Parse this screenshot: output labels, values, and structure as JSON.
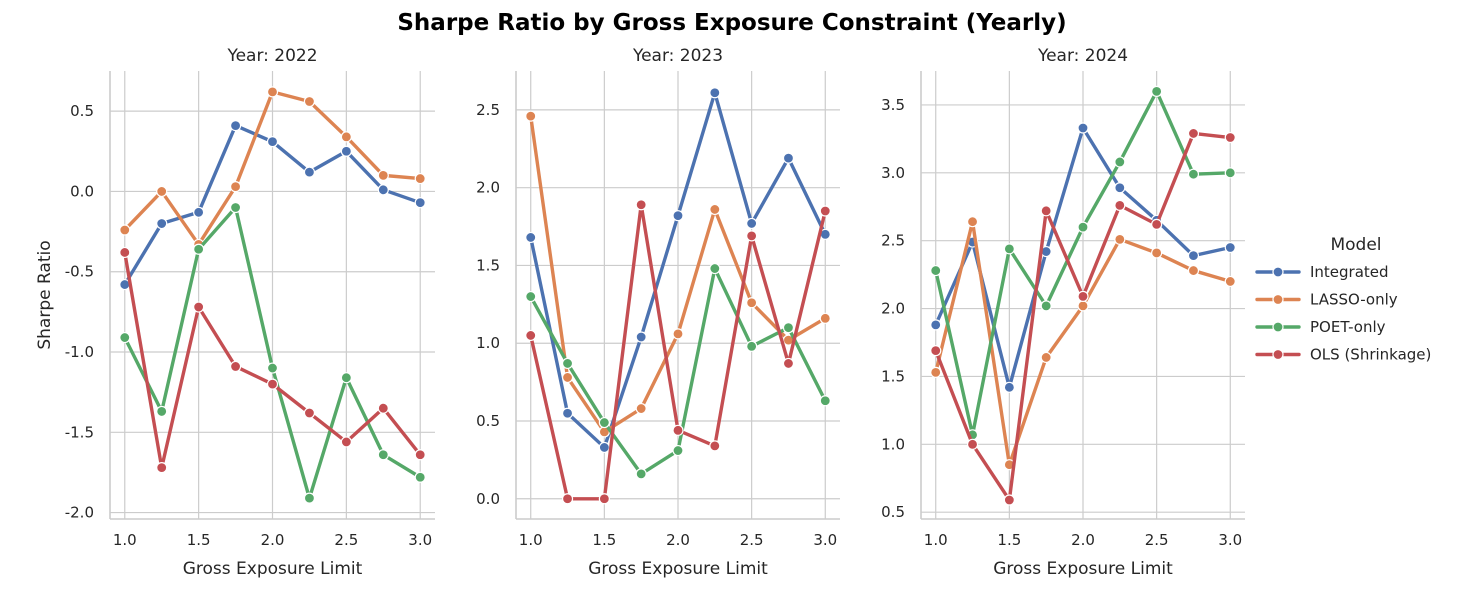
{
  "chart_data": {
    "type": "line",
    "title": "Sharpe Ratio by Gross Exposure Constraint (Yearly)",
    "xlabel": "Gross Exposure Limit",
    "ylabel": "Sharpe Ratio",
    "legend": {
      "title": "Model",
      "placement": "right",
      "entries": [
        "Integrated",
        "LASSO-only",
        "POET-only",
        "OLS (Shrinkage)"
      ]
    },
    "colors": {
      "Integrated": "#4c72b0",
      "LASSO-only": "#dd8452",
      "POET-only": "#55a868",
      "OLS (Shrinkage)": "#c44e52"
    },
    "grid": true,
    "x": [
      1.0,
      1.25,
      1.5,
      1.75,
      2.0,
      2.25,
      2.5,
      2.75,
      3.0
    ],
    "xlim": [
      0.9,
      3.1
    ],
    "xticks": [
      "1.0",
      "1.5",
      "2.0",
      "2.5",
      "3.0"
    ],
    "xtick_values": [
      1.0,
      1.5,
      2.0,
      2.5,
      3.0
    ],
    "panels": [
      {
        "title": "Year: 2022",
        "ylim": [
          -2.04,
          0.75
        ],
        "yticks": [
          "-2.0",
          "-1.5",
          "-1.0",
          "-0.5",
          "0.0",
          "0.5"
        ],
        "ytick_values": [
          -2.0,
          -1.5,
          -1.0,
          -0.5,
          0.0,
          0.5
        ],
        "series": [
          {
            "name": "Integrated",
            "values": [
              -0.58,
              -0.2,
              -0.13,
              0.41,
              0.31,
              0.12,
              0.25,
              0.01,
              -0.07
            ]
          },
          {
            "name": "LASSO-only",
            "values": [
              -0.24,
              0.0,
              -0.33,
              0.03,
              0.62,
              0.56,
              0.34,
              0.1,
              0.08
            ]
          },
          {
            "name": "POET-only",
            "values": [
              -0.91,
              -1.37,
              -0.36,
              -0.1,
              -1.1,
              -1.91,
              -1.16,
              -1.64,
              -1.78
            ]
          },
          {
            "name": "OLS (Shrinkage)",
            "values": [
              -0.38,
              -1.72,
              -0.72,
              -1.09,
              -1.2,
              -1.38,
              -1.56,
              -1.35,
              -1.64
            ]
          }
        ]
      },
      {
        "title": "Year: 2023",
        "ylim": [
          -0.13,
          2.75
        ],
        "yticks": [
          "0.0",
          "0.5",
          "1.0",
          "1.5",
          "2.0",
          "2.5"
        ],
        "ytick_values": [
          0.0,
          0.5,
          1.0,
          1.5,
          2.0,
          2.5
        ],
        "series": [
          {
            "name": "Integrated",
            "values": [
              1.68,
              0.55,
              0.33,
              1.04,
              1.82,
              2.61,
              1.77,
              2.19,
              1.7
            ]
          },
          {
            "name": "LASSO-only",
            "values": [
              2.46,
              0.78,
              0.43,
              0.58,
              1.06,
              1.86,
              1.26,
              1.02,
              1.16
            ]
          },
          {
            "name": "POET-only",
            "values": [
              1.3,
              0.87,
              0.49,
              0.16,
              0.31,
              1.48,
              0.98,
              1.1,
              0.63
            ]
          },
          {
            "name": "OLS (Shrinkage)",
            "values": [
              1.05,
              0.0,
              0.0,
              1.89,
              0.44,
              0.34,
              1.69,
              0.87,
              1.85
            ]
          }
        ]
      },
      {
        "title": "Year: 2024",
        "ylim": [
          0.45,
          3.75
        ],
        "yticks": [
          "0.5",
          "1.0",
          "1.5",
          "2.0",
          "2.5",
          "3.0",
          "3.5"
        ],
        "ytick_values": [
          0.5,
          1.0,
          1.5,
          2.0,
          2.5,
          3.0,
          3.5
        ],
        "series": [
          {
            "name": "Integrated",
            "values": [
              1.88,
              2.49,
              1.42,
              2.42,
              3.33,
              2.89,
              2.65,
              2.39,
              2.45
            ]
          },
          {
            "name": "LASSO-only",
            "values": [
              1.53,
              2.64,
              0.85,
              1.64,
              2.02,
              2.51,
              2.41,
              2.28,
              2.2
            ]
          },
          {
            "name": "POET-only",
            "values": [
              2.28,
              1.07,
              2.44,
              2.02,
              2.6,
              3.08,
              3.6,
              2.99,
              3.0
            ]
          },
          {
            "name": "OLS (Shrinkage)",
            "values": [
              1.69,
              1.0,
              0.59,
              2.72,
              2.09,
              2.76,
              2.62,
              3.29,
              3.26
            ]
          }
        ]
      }
    ]
  }
}
